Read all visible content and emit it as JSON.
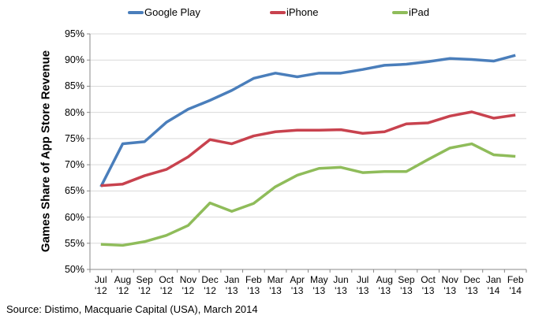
{
  "chart_data": {
    "type": "line",
    "title": "",
    "xlabel": "",
    "ylabel": "Games Share of App Store Revenue",
    "ylim": [
      50,
      95
    ],
    "y_ticks": [
      "50%",
      "55%",
      "60%",
      "65%",
      "70%",
      "75%",
      "80%",
      "85%",
      "90%",
      "95%"
    ],
    "y_tick_values": [
      50,
      55,
      60,
      65,
      70,
      75,
      80,
      85,
      90,
      95
    ],
    "grid": true,
    "legend_position": "top",
    "categories": [
      {
        "month": "Jul",
        "year": "'12"
      },
      {
        "month": "Aug",
        "year": "'12"
      },
      {
        "month": "Sep",
        "year": "'12"
      },
      {
        "month": "Oct",
        "year": "'12"
      },
      {
        "month": "Nov",
        "year": "'12"
      },
      {
        "month": "Dec",
        "year": "'12"
      },
      {
        "month": "Jan",
        "year": "'13"
      },
      {
        "month": "Feb",
        "year": "'13"
      },
      {
        "month": "Mar",
        "year": "'13"
      },
      {
        "month": "Apr",
        "year": "'13"
      },
      {
        "month": "May",
        "year": "'13"
      },
      {
        "month": "Jun",
        "year": "'13"
      },
      {
        "month": "Jul",
        "year": "'13"
      },
      {
        "month": "Aug",
        "year": "'13"
      },
      {
        "month": "Sep",
        "year": "'13"
      },
      {
        "month": "Oct",
        "year": "'13"
      },
      {
        "month": "Nov",
        "year": "'13"
      },
      {
        "month": "Dec",
        "year": "'13"
      },
      {
        "month": "Jan",
        "year": "'14"
      },
      {
        "month": "Feb",
        "year": "'14"
      }
    ],
    "series": [
      {
        "name": "Google Play",
        "color": "#4a7ebb",
        "values": [
          65.8,
          74.0,
          74.4,
          78.1,
          80.6,
          82.3,
          84.2,
          86.5,
          87.5,
          86.8,
          87.5,
          87.5,
          88.2,
          89.0,
          89.2,
          89.7,
          90.3,
          90.1,
          89.8,
          90.9
        ]
      },
      {
        "name": "iPhone",
        "color": "#c8424e",
        "values": [
          66.0,
          66.3,
          67.9,
          69.1,
          71.5,
          74.8,
          74.0,
          75.5,
          76.3,
          76.6,
          76.6,
          76.7,
          76.0,
          76.3,
          77.8,
          78.0,
          79.3,
          80.1,
          78.9,
          79.5
        ]
      },
      {
        "name": "iPad",
        "color": "#8fbc5a",
        "values": [
          54.8,
          54.6,
          55.3,
          56.5,
          58.4,
          62.7,
          61.1,
          62.6,
          65.8,
          68.0,
          69.3,
          69.5,
          68.5,
          68.7,
          68.7,
          71.0,
          73.2,
          74.0,
          71.9,
          71.6
        ]
      }
    ]
  },
  "source": "Source: Distimo, Macquarie Capital (USA), March 2014"
}
